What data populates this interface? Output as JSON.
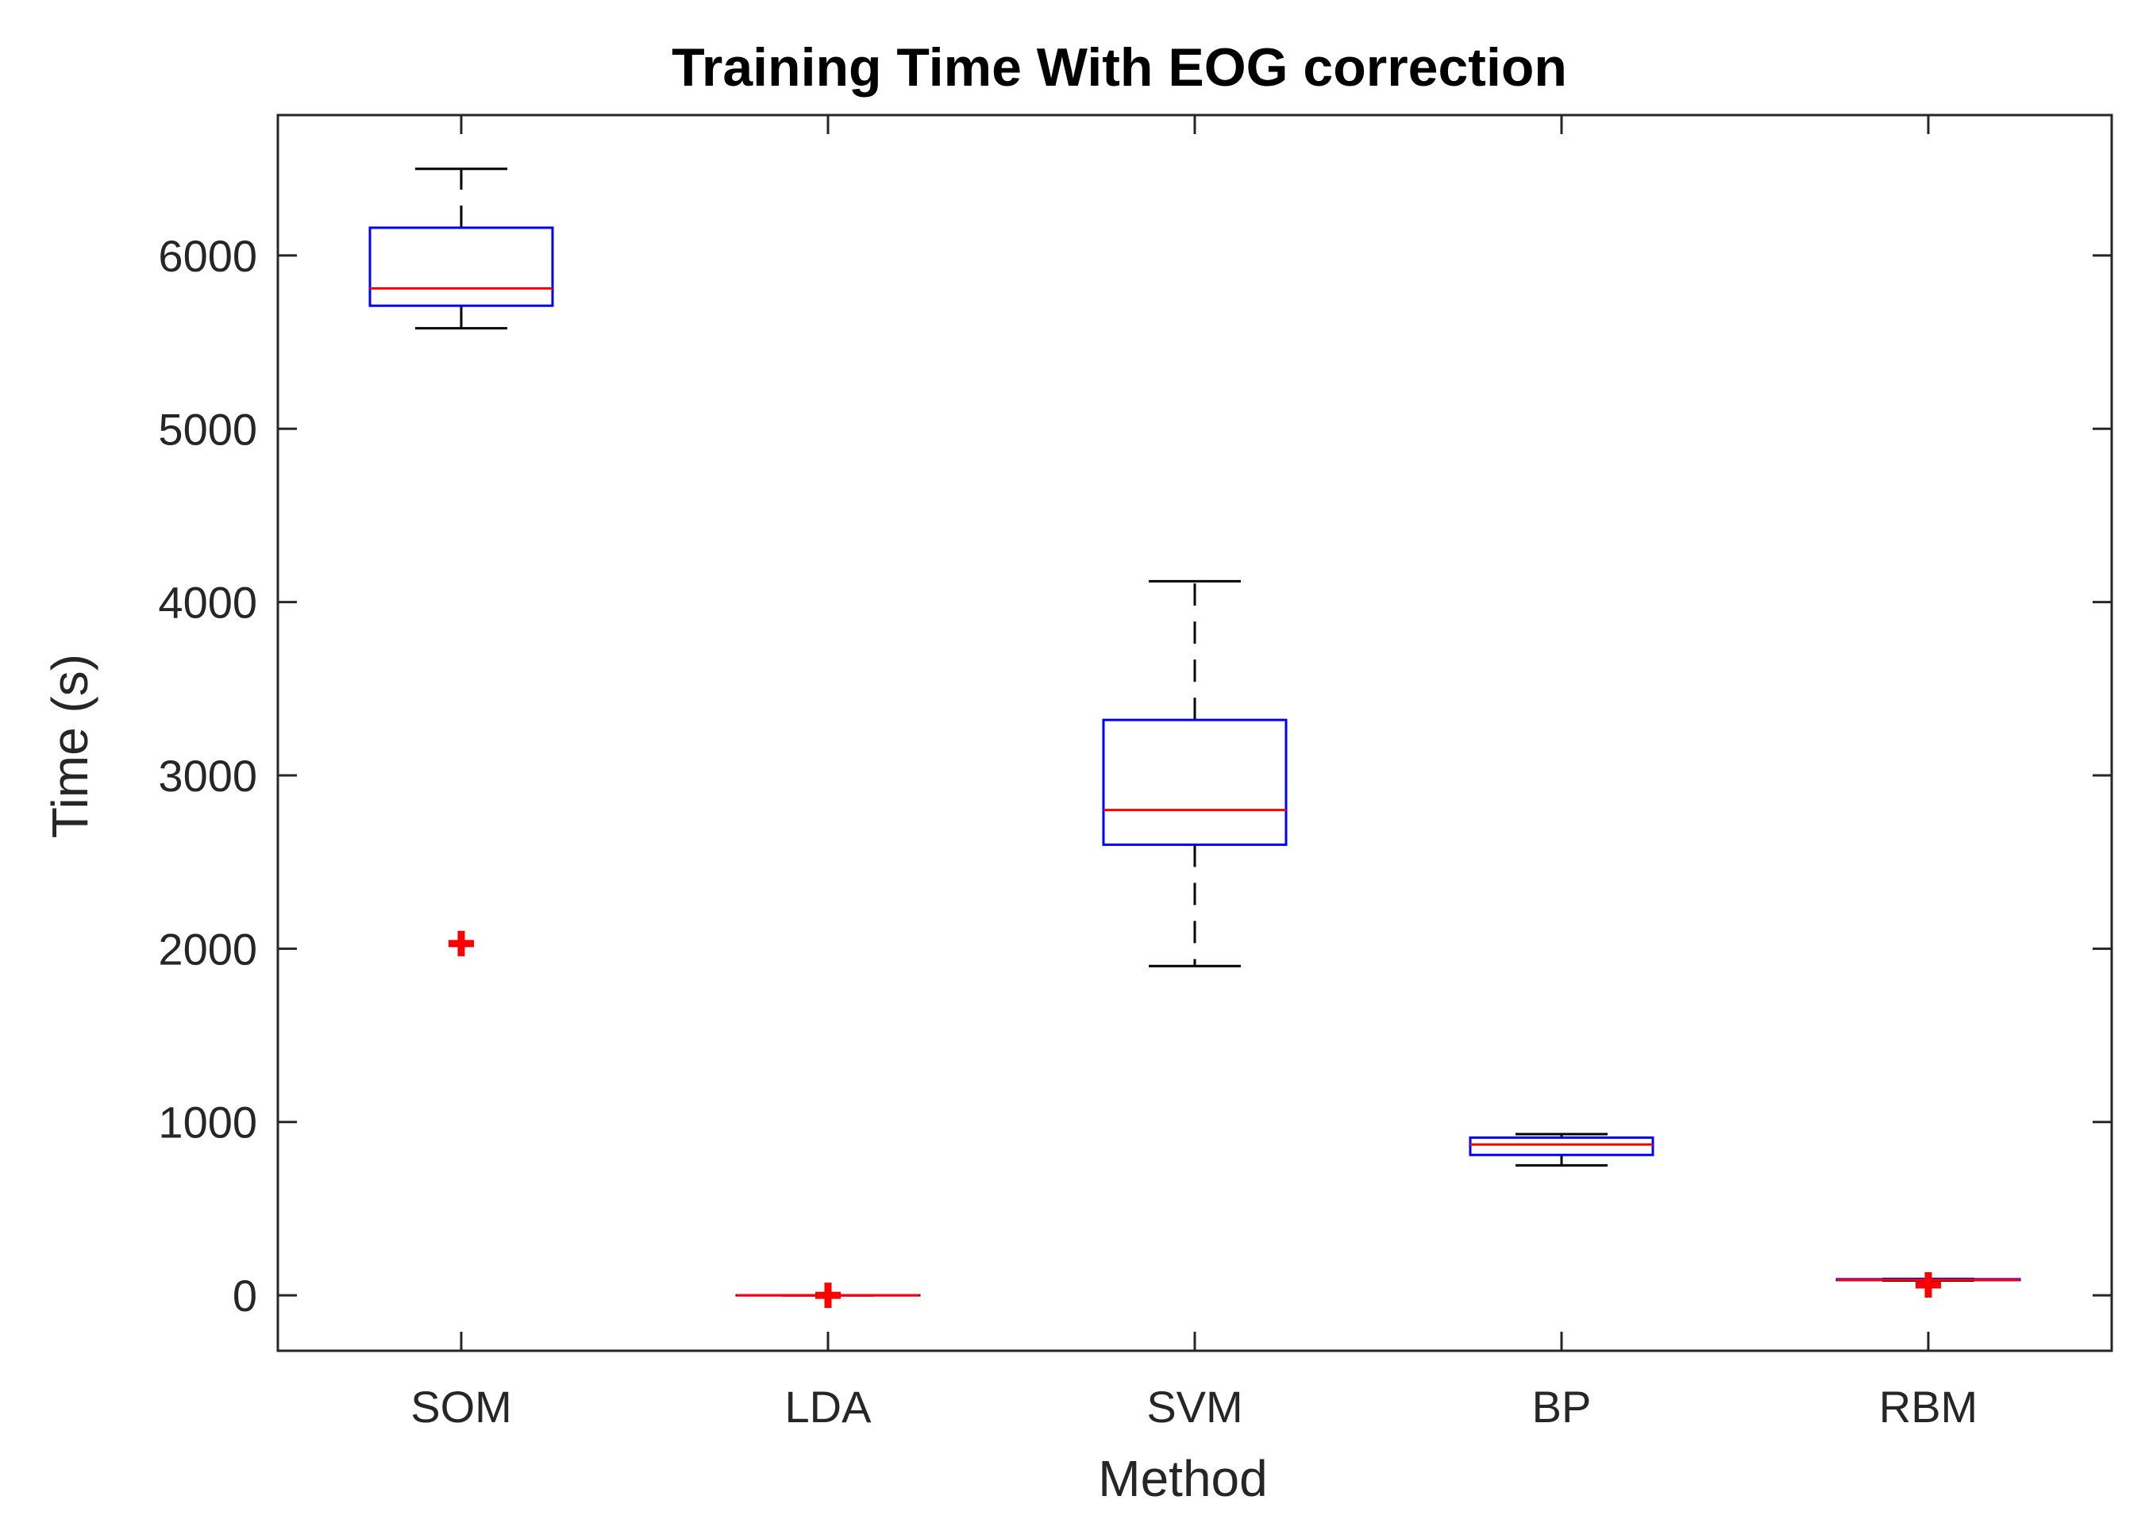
{
  "chart_data": {
    "type": "boxplot",
    "title": "Training Time With EOG correction",
    "xlabel": "Method",
    "ylabel": "Time (s)",
    "ylim": [
      -320,
      6810
    ],
    "yticks": [
      0,
      1000,
      2000,
      3000,
      4000,
      5000,
      6000
    ],
    "categories": [
      "SOM",
      "LDA",
      "SVM",
      "BP",
      "RBM"
    ],
    "boxes": [
      {
        "name": "SOM",
        "whisker_low": 5580,
        "q1": 5710,
        "median": 5810,
        "q3": 6160,
        "whisker_high": 6500,
        "outliers": [
          2030
        ]
      },
      {
        "name": "LDA",
        "whisker_low": 0,
        "q1": 0,
        "median": 0,
        "q3": 0,
        "whisker_high": 0,
        "outliers": [
          0
        ]
      },
      {
        "name": "SVM",
        "whisker_low": 1900,
        "q1": 2600,
        "median": 2800,
        "q3": 3320,
        "whisker_high": 4120,
        "outliers": []
      },
      {
        "name": "BP",
        "whisker_low": 750,
        "q1": 810,
        "median": 870,
        "q3": 910,
        "whisker_high": 930,
        "outliers": []
      },
      {
        "name": "RBM",
        "whisker_low": 85,
        "q1": 88,
        "median": 90,
        "q3": 93,
        "whisker_high": 95,
        "outliers": [
          60
        ]
      }
    ],
    "colors": {
      "box": "#0000ff",
      "median": "#ff0000",
      "whisker": "#000000",
      "outlier": "#ff0000",
      "axis": "#262626"
    },
    "grid": false,
    "legend": false
  }
}
